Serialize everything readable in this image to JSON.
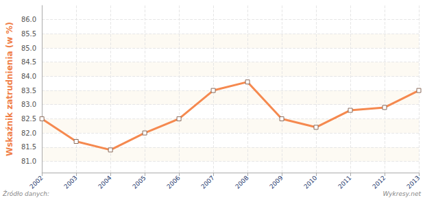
{
  "chart_data": {
    "type": "line",
    "y_label": "Wskaźnik zatrudnienia (w %)",
    "categories": [
      "2002",
      "2003",
      "2004",
      "2005",
      "2006",
      "2007",
      "2008",
      "2009",
      "2010",
      "2011",
      "2012",
      "2013"
    ],
    "values": [
      82.5,
      81.7,
      81.4,
      82.0,
      82.5,
      83.5,
      83.8,
      82.5,
      82.2,
      82.8,
      82.9,
      83.5
    ],
    "color": "#f5894f",
    "marker": "square",
    "ylim": [
      80.6,
      86.5
    ],
    "yticks": [
      {
        "value": 81,
        "label": "81.0"
      },
      {
        "value": 81.5,
        "label": "81.5"
      },
      {
        "value": 82,
        "label": "82.0"
      },
      {
        "value": 82.5,
        "label": "82.5"
      },
      {
        "value": 83,
        "label": "83.0"
      },
      {
        "value": 83.5,
        "label": "83.5"
      },
      {
        "value": 84,
        "label": "84.0"
      },
      {
        "value": 84.5,
        "label": "84.5"
      },
      {
        "value": 85,
        "label": "85.0"
      },
      {
        "value": 85.5,
        "label": "85.5"
      },
      {
        "value": 86,
        "label": "86.0"
      }
    ],
    "grid": true,
    "watermark": "wykresy.net",
    "source_label": "Źródło danych:",
    "credit": "Wykresy.net"
  }
}
